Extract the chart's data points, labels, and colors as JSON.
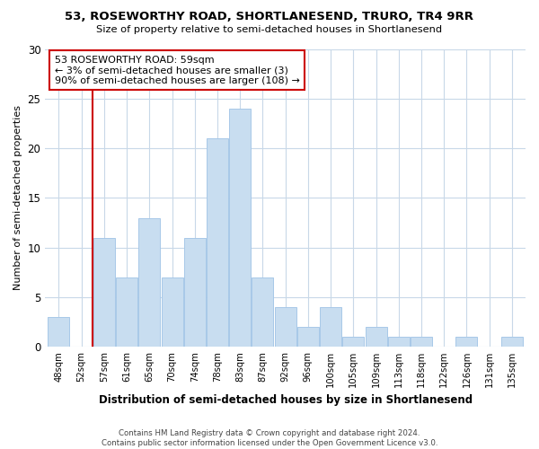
{
  "title1": "53, ROSEWORTHY ROAD, SHORTLANESEND, TRURO, TR4 9RR",
  "title2": "Size of property relative to semi-detached houses in Shortlanesend",
  "xlabel": "Distribution of semi-detached houses by size in Shortlanesend",
  "ylabel": "Number of semi-detached properties",
  "bin_labels": [
    "48sqm",
    "52sqm",
    "57sqm",
    "61sqm",
    "65sqm",
    "70sqm",
    "74sqm",
    "78sqm",
    "83sqm",
    "87sqm",
    "92sqm",
    "96sqm",
    "100sqm",
    "105sqm",
    "109sqm",
    "113sqm",
    "118sqm",
    "122sqm",
    "126sqm",
    "131sqm",
    "135sqm"
  ],
  "bar_heights": [
    3,
    0,
    11,
    7,
    13,
    7,
    11,
    21,
    24,
    7,
    4,
    2,
    4,
    1,
    2,
    1,
    1,
    0,
    1,
    0,
    1
  ],
  "bar_color": "#c8ddf0",
  "bar_edge_color": "#a8c8e8",
  "vline_index": 2,
  "marker_label": "53 ROSEWORTHY ROAD: 59sqm",
  "smaller_text": "← 3% of semi-detached houses are smaller (3)",
  "larger_text": "90% of semi-detached houses are larger (108) →",
  "vline_color": "#cc0000",
  "annotation_box_edge": "#cc0000",
  "ylim": [
    0,
    30
  ],
  "yticks": [
    0,
    5,
    10,
    15,
    20,
    25,
    30
  ],
  "footer": "Contains HM Land Registry data © Crown copyright and database right 2024.\nContains public sector information licensed under the Open Government Licence v3.0.",
  "bg_color": "#ffffff",
  "grid_color": "#c8d8e8"
}
